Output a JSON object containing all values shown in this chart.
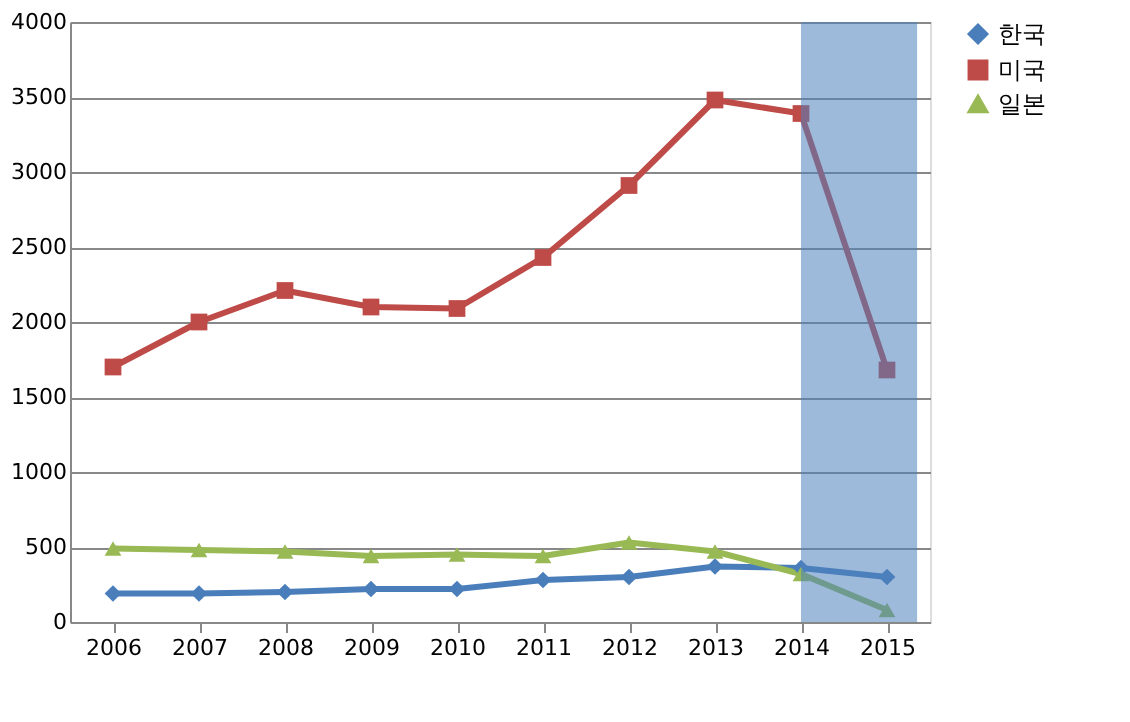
{
  "chart_data": {
    "type": "line",
    "x": [
      2006,
      2007,
      2008,
      2009,
      2010,
      2011,
      2012,
      2013,
      2014,
      2015
    ],
    "xlim": [
      2005.5,
      2015.5
    ],
    "xticks": [
      2006,
      2007,
      2008,
      2009,
      2010,
      2011,
      2012,
      2013,
      2014,
      2015
    ],
    "ylim": [
      0,
      4000
    ],
    "yticks": [
      0,
      500,
      1000,
      1500,
      2000,
      2500,
      3000,
      3500,
      4000
    ],
    "grid": "y",
    "legend": "right",
    "line_style": "solid",
    "series": [
      {
        "name": "한국",
        "color": "#4a7ebb",
        "marker": "diamond",
        "values": [
          190,
          190,
          200,
          220,
          220,
          280,
          300,
          370,
          360,
          300
        ]
      },
      {
        "name": "미국",
        "color": "#be4b48",
        "marker": "square",
        "values": [
          1700,
          2000,
          2210,
          2100,
          2090,
          2430,
          2910,
          3480,
          3390,
          1680
        ]
      },
      {
        "name": "일본",
        "color": "#98b954",
        "marker": "triangle",
        "values": [
          490,
          480,
          470,
          440,
          450,
          440,
          530,
          470,
          320,
          80
        ]
      }
    ],
    "bands": [
      {
        "axis": "x",
        "from": 2014,
        "to": 2015.35,
        "color": "#4f81bd"
      }
    ]
  }
}
